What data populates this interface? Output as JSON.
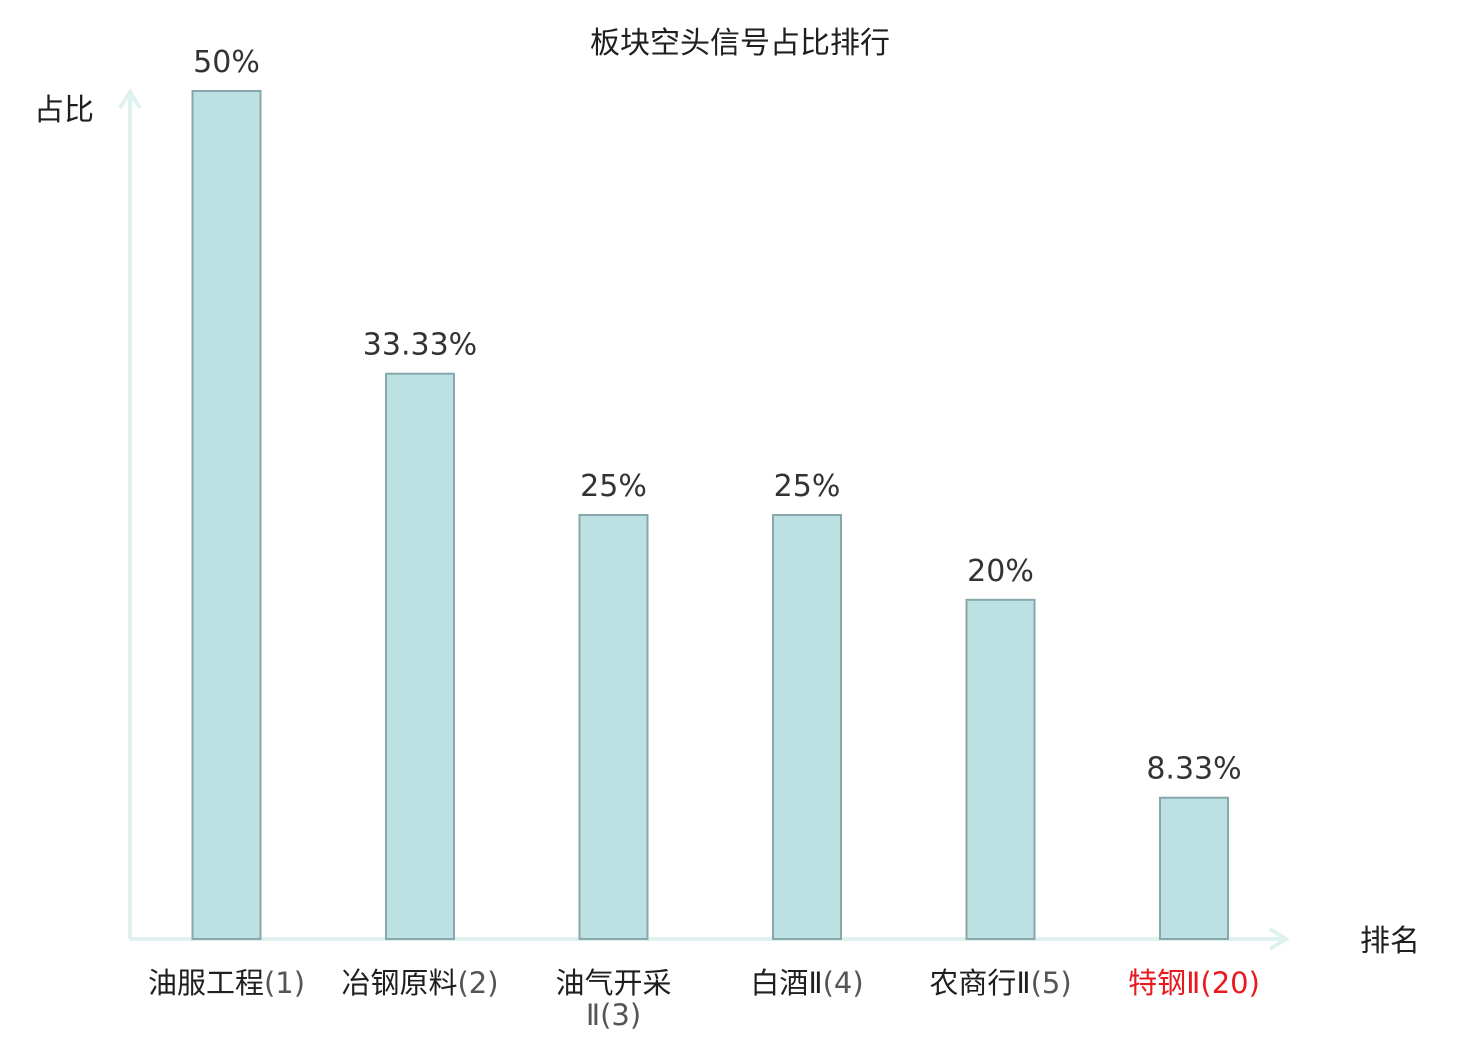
{
  "chart_data": {
    "type": "bar",
    "title": "板块空头信号占比排行",
    "xlabel": "排名",
    "ylabel": "占比",
    "ylim": [
      0,
      50
    ],
    "grid": false,
    "legend": "none",
    "categories": [
      {
        "name": "油服工程",
        "rank": "(1)"
      },
      {
        "name": "冶钢原料",
        "rank": "(2)"
      },
      {
        "name": "油气开采Ⅱ",
        "rank": "(3)"
      },
      {
        "name": "白酒Ⅱ",
        "rank": "(4)"
      },
      {
        "name": "农商行Ⅱ",
        "rank": "(5)"
      },
      {
        "name": "特钢Ⅱ",
        "rank": "(20)",
        "highlight": true
      }
    ],
    "values": [
      50,
      33.33,
      25,
      25,
      20,
      8.33
    ],
    "value_labels": [
      "50%",
      "33.33%",
      "25%",
      "25%",
      "20%",
      "8.33%"
    ],
    "colors": {
      "bar_fill": "#bde0e3",
      "bar_stroke": "#86a8ab",
      "axis": "#dff2f0",
      "highlight_text": "#e8191f"
    }
  }
}
